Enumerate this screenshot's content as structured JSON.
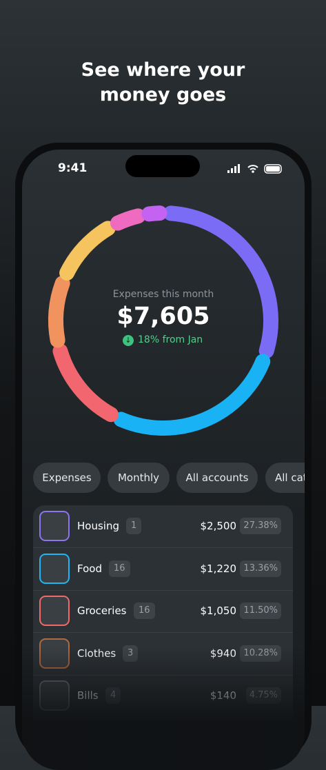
{
  "headline": [
    "See where your",
    "money goes"
  ],
  "status": {
    "time": "9:41"
  },
  "summary": {
    "label": "Expenses this month",
    "amount": "$7,605",
    "change": "18% from Jan"
  },
  "ring": [
    {
      "color": "#7b6cf6",
      "value": 28
    },
    {
      "color": "#19b3f5",
      "value": 25
    },
    {
      "color": "#f2666f",
      "value": 13
    },
    {
      "color": "#f0935f",
      "value": 9.5
    },
    {
      "color": "#f6c45e",
      "value": 10
    },
    {
      "color": "#ee6bbf",
      "value": 4.5
    },
    {
      "color": "#c463f2",
      "value": 3
    }
  ],
  "filters": [
    "Expenses",
    "Monthly",
    "All accounts",
    "All cat"
  ],
  "categories": [
    {
      "name": "Housing",
      "count": "1",
      "amount": "$2,500",
      "share": "27.38%",
      "color": "#8d74f0"
    },
    {
      "name": "Food",
      "count": "16",
      "amount": "$1,220",
      "share": "13.36%",
      "color": "#1fb6f5"
    },
    {
      "name": "Groceries",
      "count": "16",
      "amount": "$1,050",
      "share": "11.50%",
      "color": "#f06a6a"
    },
    {
      "name": "Clothes",
      "count": "3",
      "amount": "$940",
      "share": "10.28%",
      "color": "#b06a40"
    },
    {
      "name": "Bills",
      "count": "4",
      "amount": "$140",
      "share": "4.75%",
      "color": "#6a6f73"
    }
  ]
}
